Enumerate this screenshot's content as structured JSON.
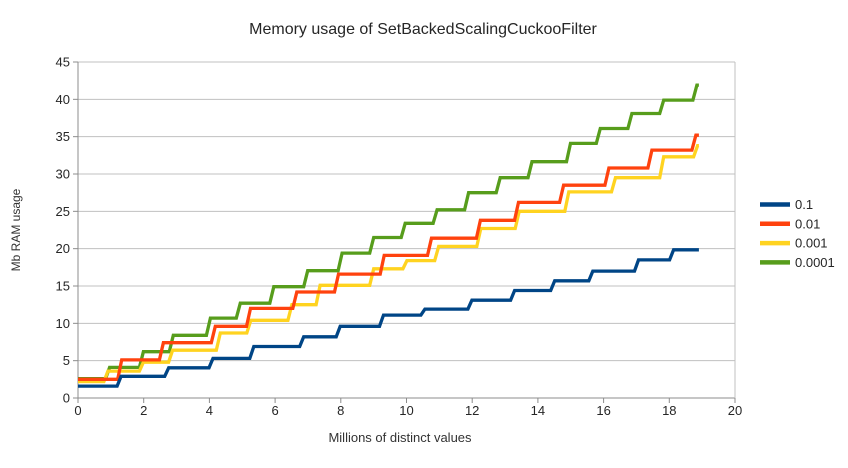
{
  "chart_data": {
    "type": "line",
    "subtype": "step",
    "title": "Memory usage of SetBackedScalingCuckooFilter",
    "xlabel": "Millions of distinct values",
    "ylabel": "Mb RAM usage",
    "xlim": [
      0,
      20
    ],
    "ylim": [
      0,
      45
    ],
    "xticks": [
      0,
      2,
      4,
      6,
      8,
      10,
      12,
      14,
      16,
      18,
      20
    ],
    "yticks": [
      0,
      5,
      10,
      15,
      20,
      25,
      30,
      35,
      40,
      45
    ],
    "grid": "horizontal",
    "legend_position": "right",
    "axis_color": "#8c8c8c",
    "grid_color": "#c0c0c0",
    "text_color": "#262626",
    "series": [
      {
        "name": "0.1",
        "color": "#004586",
        "x_end": 18.9,
        "points": [
          [
            0,
            1.6
          ],
          [
            1.25,
            2.9
          ],
          [
            2.7,
            4.05
          ],
          [
            4.05,
            5.3
          ],
          [
            5.29,
            6.9
          ],
          [
            6.81,
            8.2
          ],
          [
            7.92,
            9.6
          ],
          [
            9.24,
            11.1
          ],
          [
            10.5,
            11.9
          ],
          [
            11.93,
            13.1
          ],
          [
            13.23,
            14.4
          ],
          [
            14.45,
            15.7
          ],
          [
            15.61,
            17.0
          ],
          [
            17.0,
            18.5
          ],
          [
            18.07,
            19.85
          ]
        ]
      },
      {
        "name": "0.01",
        "color": "#ff420e",
        "x_end": 18.9,
        "points": [
          [
            0,
            2.5
          ],
          [
            1.27,
            5.1
          ],
          [
            2.54,
            7.4
          ],
          [
            4.12,
            9.6
          ],
          [
            5.19,
            12.0
          ],
          [
            6.6,
            14.2
          ],
          [
            7.87,
            16.6
          ],
          [
            9.26,
            19.1
          ],
          [
            10.7,
            21.4
          ],
          [
            12.19,
            23.8
          ],
          [
            13.35,
            26.2
          ],
          [
            14.72,
            28.5
          ],
          [
            16.1,
            30.8
          ],
          [
            17.41,
            33.2
          ],
          [
            18.75,
            35.2
          ]
        ]
      },
      {
        "name": "0.001",
        "color": "#ffd320",
        "x_end": 18.9,
        "points": [
          [
            0,
            2.2
          ],
          [
            0.85,
            3.6
          ],
          [
            1.93,
            4.8
          ],
          [
            2.82,
            6.4
          ],
          [
            4.27,
            8.7
          ],
          [
            5.2,
            10.4
          ],
          [
            6.45,
            12.5
          ],
          [
            7.31,
            15.1
          ],
          [
            8.94,
            17.3
          ],
          [
            9.95,
            18.4
          ],
          [
            10.92,
            20.3
          ],
          [
            12.2,
            22.7
          ],
          [
            13.37,
            25.0
          ],
          [
            14.88,
            27.6
          ],
          [
            16.3,
            29.5
          ],
          [
            17.77,
            32.3
          ],
          [
            18.8,
            33.8
          ]
        ]
      },
      {
        "name": "0.0001",
        "color": "#579d1c",
        "x_end": 18.9,
        "points": [
          [
            0,
            2.6
          ],
          [
            0.9,
            4.1
          ],
          [
            1.93,
            6.2
          ],
          [
            2.84,
            8.4
          ],
          [
            3.97,
            10.7
          ],
          [
            4.88,
            12.7
          ],
          [
            5.9,
            14.9
          ],
          [
            6.93,
            17.05
          ],
          [
            7.98,
            19.4
          ],
          [
            8.94,
            21.5
          ],
          [
            9.9,
            23.4
          ],
          [
            10.87,
            25.2
          ],
          [
            11.83,
            27.5
          ],
          [
            12.79,
            29.5
          ],
          [
            13.76,
            31.65
          ],
          [
            14.93,
            34.1
          ],
          [
            15.84,
            36.1
          ],
          [
            16.8,
            38.1
          ],
          [
            17.77,
            39.9
          ],
          [
            18.78,
            41.9
          ]
        ]
      }
    ]
  }
}
